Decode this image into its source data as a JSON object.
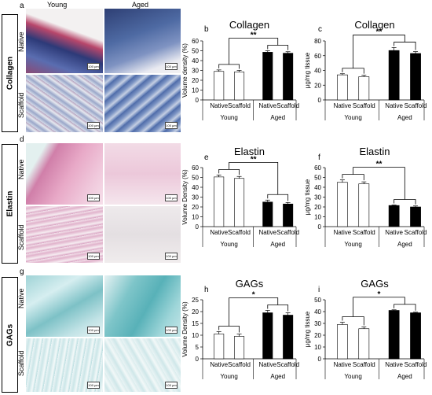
{
  "headers": {
    "col1": "Young",
    "col2": "Aged"
  },
  "image_panels": [
    {
      "letter": "a",
      "section": "Collagen",
      "rows": [
        "Native",
        "Scaffold"
      ]
    },
    {
      "letter": "d",
      "section": "Elastin",
      "rows": [
        "Native",
        "Scaffold"
      ]
    },
    {
      "letter": "g",
      "section": "GAGs",
      "rows": [
        "Native",
        "Scaffold"
      ]
    }
  ],
  "scale_label": "100 µm",
  "colors": {
    "bar_young": "#ffffff",
    "bar_aged": "#000000",
    "edge": "#000000",
    "collagen_bg": "#9fb3cf",
    "elastin_bg": "#e8c6d8",
    "gags_bg": "#cfe8ea"
  },
  "chart_data": [
    {
      "letter": "b",
      "type": "bar",
      "title": "Collagen",
      "ylabel": "Volume density (%)",
      "ylim": [
        0,
        60
      ],
      "yticks": [
        0,
        10,
        20,
        30,
        40,
        50,
        60
      ],
      "categories": [
        "Native",
        "Scaffold",
        "Native",
        "Scaffold"
      ],
      "groups": [
        "Young",
        "Aged"
      ],
      "values": [
        29,
        28.5,
        48.5,
        47.5
      ],
      "errors": [
        1.5,
        1.5,
        1.5,
        1.5
      ],
      "significance": "**"
    },
    {
      "letter": "c",
      "type": "bar",
      "title": "Collagen",
      "ylabel": "µg/mg tissue",
      "ylim": [
        0,
        80
      ],
      "yticks": [
        0,
        20,
        40,
        60,
        80
      ],
      "categories": [
        "Native",
        "Scaffold",
        "Native",
        "Scaffold"
      ],
      "groups": [
        "Young",
        "Aged"
      ],
      "values": [
        34,
        31.5,
        67,
        63
      ],
      "errors": [
        1.5,
        2,
        4,
        2.5
      ],
      "significance": "**"
    },
    {
      "letter": "e",
      "type": "bar",
      "title": "Elastin",
      "ylabel": "Volume Density (%)",
      "ylim": [
        0,
        60
      ],
      "yticks": [
        0,
        10,
        20,
        30,
        40,
        50,
        60
      ],
      "categories": [
        "Native",
        "Scaffold",
        "Native",
        "Scaffold"
      ],
      "groups": [
        "Young",
        "Aged"
      ],
      "values": [
        50.5,
        49,
        25,
        23
      ],
      "errors": [
        2,
        2,
        2,
        1.5
      ],
      "significance": "**"
    },
    {
      "letter": "f",
      "type": "bar",
      "title": "Elastin",
      "ylabel": "µg/mg tissue",
      "ylim": [
        0,
        60
      ],
      "yticks": [
        0,
        10,
        20,
        30,
        40,
        50,
        60
      ],
      "categories": [
        "Native",
        "Scaffold",
        "Native",
        "Scaffold"
      ],
      "groups": [
        "Young",
        "Aged"
      ],
      "values": [
        45,
        43.5,
        21.5,
        20
      ],
      "errors": [
        2.5,
        2,
        0.5,
        1
      ],
      "significance": "**"
    },
    {
      "letter": "h",
      "type": "bar",
      "title": "GAGs",
      "ylabel": "Volume Density (%)",
      "ylim": [
        0,
        25
      ],
      "yticks": [
        0,
        5,
        10,
        15,
        20,
        25
      ],
      "categories": [
        "Native",
        "Scaffold",
        "Native",
        "Scaffold"
      ],
      "groups": [
        "Young",
        "Aged"
      ],
      "values": [
        10.5,
        9.5,
        19.5,
        18.5
      ],
      "errors": [
        1,
        1,
        1,
        1
      ],
      "significance": "*"
    },
    {
      "letter": "i",
      "type": "bar",
      "title": "GAGs",
      "ylabel": "µg/mg tissue",
      "ylim": [
        0,
        50
      ],
      "yticks": [
        0,
        10,
        20,
        30,
        40,
        50
      ],
      "categories": [
        "Native",
        "Scaffold",
        "Native",
        "Scaffold"
      ],
      "groups": [
        "Young",
        "Aged"
      ],
      "values": [
        29,
        25.5,
        41,
        39
      ],
      "errors": [
        2,
        1.5,
        0.5,
        0.5
      ],
      "significance": "*"
    }
  ]
}
